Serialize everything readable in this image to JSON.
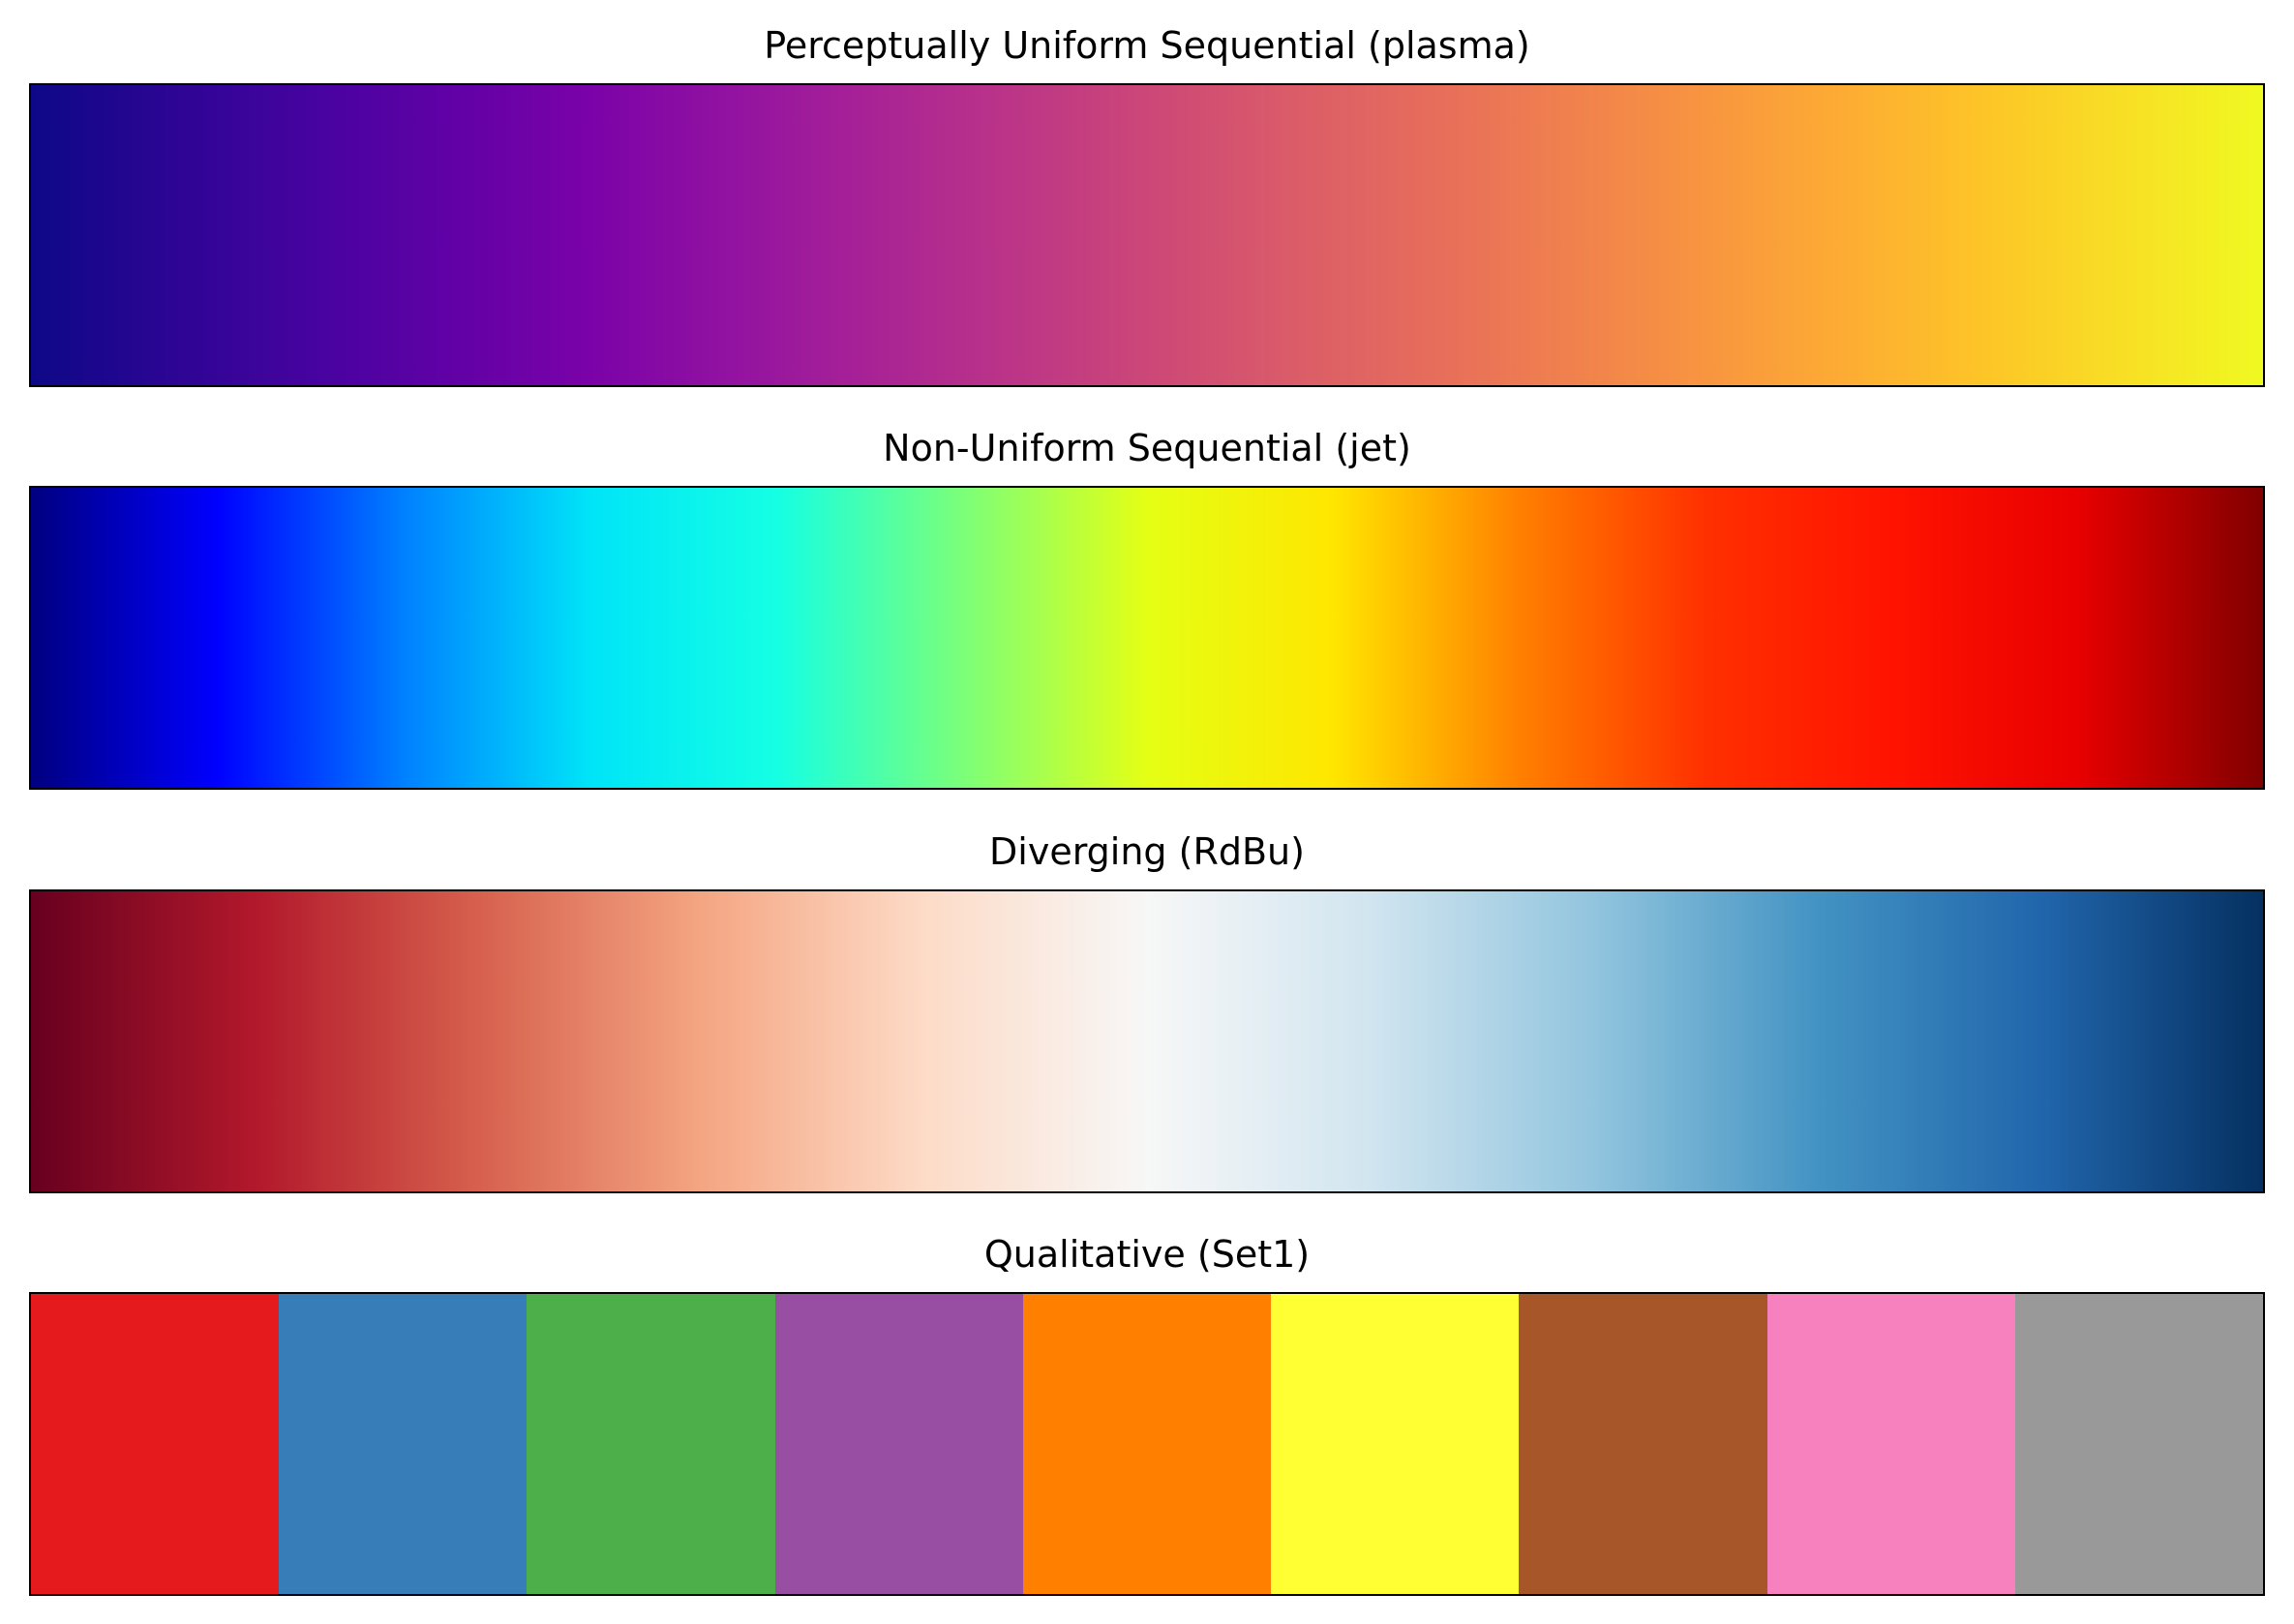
{
  "chart_data": [
    {
      "type": "colorbar",
      "title": "Perceptually Uniform Sequential (plasma)",
      "kind": "continuous",
      "stops": [
        "#0d0887",
        "#2c0594",
        "#46039f",
        "#6001a6",
        "#7a02a8",
        "#9212a1",
        "#a82296",
        "#bb3488",
        "#cc4778",
        "#da5b69",
        "#e66c5c",
        "#f0804e",
        "#f89540",
        "#fdac33",
        "#fdc527",
        "#f8df25",
        "#f0f921"
      ]
    },
    {
      "type": "colorbar",
      "title": "Non-Uniform Sequential (jet)",
      "kind": "continuous",
      "stops": [
        "#000080",
        "#0000ff",
        "#0080ff",
        "#00e4f8",
        "#14ffe4",
        "#7aff7a",
        "#e4ff14",
        "#ffe600",
        "#ff8000",
        "#ff3000",
        "#ff1300",
        "#e80000",
        "#800000"
      ]
    },
    {
      "type": "colorbar",
      "title": "Diverging (RdBu)",
      "kind": "continuous",
      "stops": [
        "#67001f",
        "#b2182b",
        "#d6604d",
        "#f4a582",
        "#fddbc7",
        "#f7f7f7",
        "#d1e5f0",
        "#92c5de",
        "#4393c3",
        "#2166ac",
        "#053061"
      ]
    },
    {
      "type": "colorbar",
      "title": "Qualitative (Set1)",
      "kind": "discrete",
      "colors": [
        "#e41a1c",
        "#377eb8",
        "#4daf4a",
        "#984ea3",
        "#ff7f00",
        "#ffff33",
        "#a65628",
        "#f781bf",
        "#999999"
      ]
    }
  ]
}
